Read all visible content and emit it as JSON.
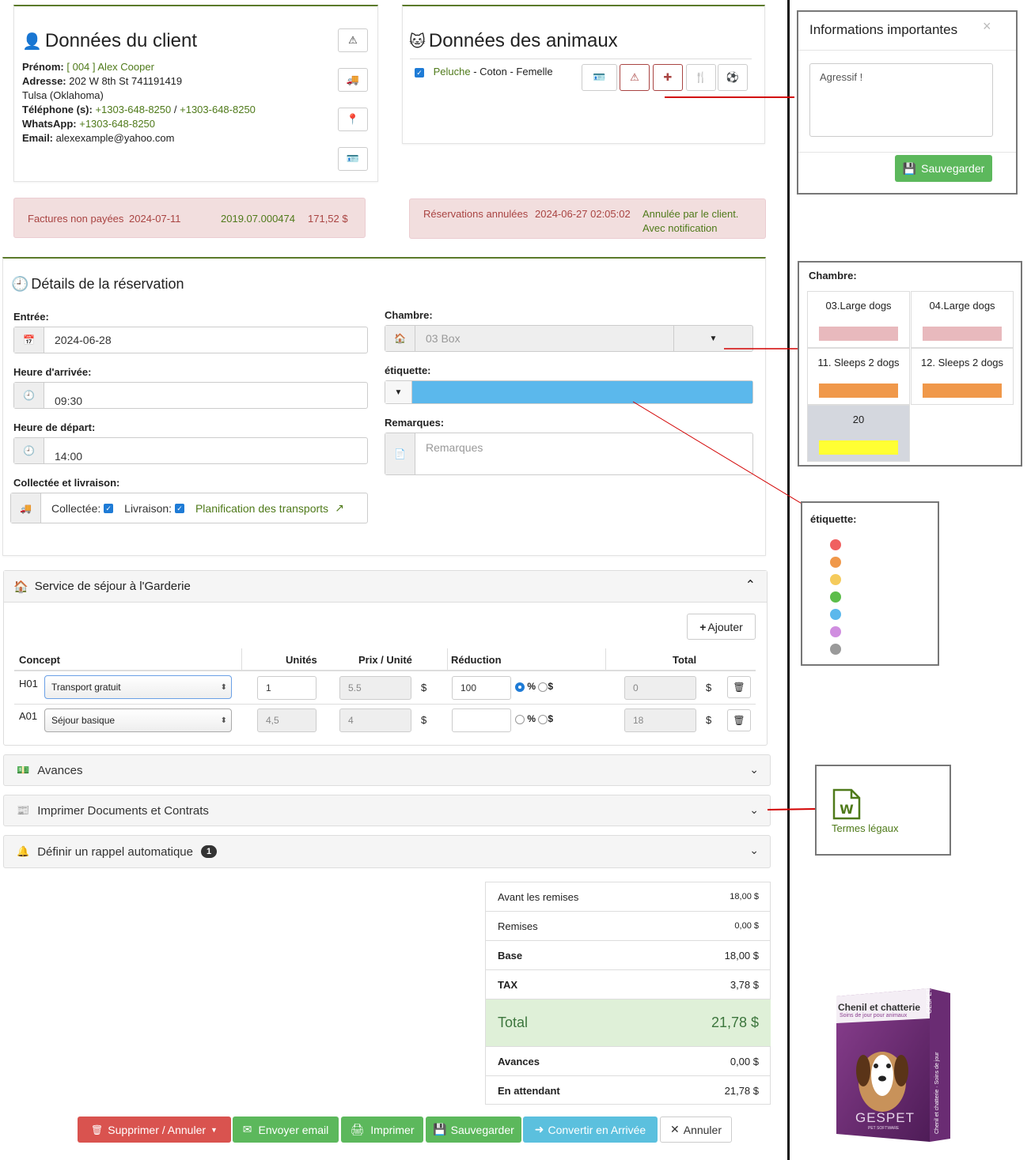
{
  "client": {
    "title": "Données du client",
    "prenom_label": "Prénom:",
    "prenom_value": "[ 004 ] Alex Cooper",
    "adresse_label": "Adresse:",
    "adresse_value": "202 W 8th St   741191419",
    "city": "Tulsa (Oklahoma)",
    "tel_label": "Téléphone (s):",
    "tel1": "+1303-648-8250",
    "tel_sep": "/",
    "tel2": "+1303-648-8250",
    "whatsapp_label": "WhatsApp:",
    "whatsapp_value": "+1303-648-8250",
    "email_label": "Email:",
    "email_value": "alexexample@yahoo.com"
  },
  "animals": {
    "title": "Données des animaux",
    "name": "Peluche",
    "details": " - Coton - Femelle"
  },
  "alerts": {
    "unpaid_label": "Factures non payées",
    "unpaid_date": "2024-07-11",
    "unpaid_ref": "2019.07.000474",
    "unpaid_amount": "171,52 $",
    "cancel_label": "Réservations annulées",
    "cancel_date": "2024-06-27 02:05:02",
    "cancel_note1": "Annulée par le client.",
    "cancel_note2": "Avec notification"
  },
  "reservation": {
    "title": "Détails de la réservation",
    "entree_label": "Entrée:",
    "entree_value": "2024-06-28",
    "arrivee_label": "Heure d'arrivée:",
    "arrivee_value": "09:30",
    "depart_label": "Heure de départ:",
    "depart_value": "14:00",
    "collecte_label": "Collectée et livraison:",
    "collectee": "Collectée:",
    "livraison": "Livraison:",
    "planning_link": "Planification des transports",
    "chambre_label": "Chambre:",
    "chambre_value": "03 Box",
    "etiquette_label": "étiquette:",
    "etiquette_color": "#5bb8ec",
    "remarques_label": "Remarques:",
    "remarques_placeholder": "Remarques"
  },
  "service": {
    "title": "Service de séjour à l'Garderie",
    "add_button": "Ajouter",
    "headers": [
      "Concept",
      "Unités",
      "Prix / Unité",
      "Réduction",
      "Total"
    ],
    "rows": [
      {
        "code": "H01",
        "concept": "Transport gratuit",
        "units": "1",
        "price": "5.5",
        "currency": "$",
        "reduction": "100",
        "pct": "%",
        "dollar": "$",
        "total": "0"
      },
      {
        "code": "A01",
        "concept": "Séjour basique",
        "units": "4,5",
        "price": "4",
        "currency": "$",
        "reduction": "",
        "pct": "%",
        "dollar": "$",
        "total": "18"
      }
    ]
  },
  "accordions": {
    "avances": "Avances",
    "print": "Imprimer Documents et Contrats",
    "rappel": "Définir un rappel automatique",
    "rappel_badge": "1"
  },
  "summary": {
    "avant_label": "Avant les remises",
    "avant_value": "18,00 $",
    "remises_label": "Remises",
    "remises_value": "0,00 $",
    "base_label": "Base",
    "base_value": "18,00 $",
    "tax_label": "TAX",
    "tax_value": "3,78 $",
    "total_label": "Total",
    "total_value": "21,78 $",
    "avances_label": "Avances",
    "avances_value": "0,00 $",
    "attente_label": "En attendant",
    "attente_value": "21,78 $"
  },
  "buttons": {
    "delete": "Supprimer  /  Annuler",
    "email": "Envoyer email",
    "print": "Imprimer",
    "save": "Sauvegarder",
    "convert": "Convertir en Arrivée",
    "cancel": "Annuler"
  },
  "info_modal": {
    "title": "Informations importantes",
    "close": "×",
    "text": "Agressif !",
    "save": "Sauvegarder"
  },
  "rooms": {
    "label": "Chambre:",
    "items": [
      {
        "name": "03.Large dogs",
        "color": "#e8b9bd"
      },
      {
        "name": "04.Large dogs",
        "color": "#e8b9bd"
      },
      {
        "name": "11. Sleeps 2 dogs",
        "color": "#f0984a"
      },
      {
        "name": "12. Sleeps 2 dogs",
        "color": "#f0984a"
      },
      {
        "name": "20",
        "color": "#ffff33"
      }
    ]
  },
  "etiquettes": {
    "label": "étiquette:",
    "colors": [
      "#f06060",
      "#f0984a",
      "#f5cb5c",
      "#5cbd4a",
      "#5bb8ec",
      "#d08ee0",
      "#9a9a9a"
    ]
  },
  "doc": {
    "label": "Termes légaux"
  },
  "product": {
    "title": "Chenil et chatterie",
    "subtitle": "Soins de jour pour animaux",
    "brand": "GESPET",
    "side": "GESPET",
    "side2": "Chenil et chatterie · Soins de jour",
    "soft": "PET SOFTWARE"
  }
}
